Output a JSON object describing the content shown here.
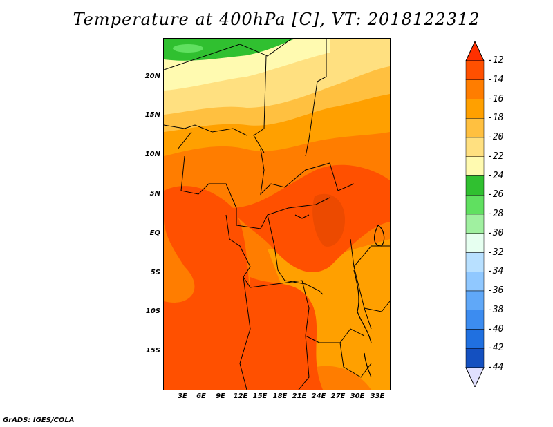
{
  "title": "Temperature at 400hPa [C], VT: 2018122312",
  "credit": "GrADS: IGES/COLA",
  "lat_labels": [
    "20N",
    "15N",
    "10N",
    "5N",
    "EQ",
    "5S",
    "10S",
    "15S"
  ],
  "lon_labels": [
    "3E",
    "6E",
    "9E",
    "12E",
    "15E",
    "18E",
    "21E",
    "24E",
    "27E",
    "30E",
    "33E"
  ],
  "colorbar": {
    "labels": [
      "-12",
      "-14",
      "-16",
      "-18",
      "-20",
      "-22",
      "-24",
      "-26",
      "-28",
      "-30",
      "-32",
      "-34",
      "-36",
      "-38",
      "-40",
      "-42",
      "-44"
    ],
    "colors": [
      "#ff5000",
      "#ff7d00",
      "#ffa000",
      "#ffc040",
      "#ffe080",
      "#fffab0",
      "#30c030",
      "#60e060",
      "#a0f0a0",
      "#e6fff0",
      "#b8e0ff",
      "#90c8ff",
      "#60a8f8",
      "#3c8cf0",
      "#2070e0",
      "#1450c0",
      "#0a1a80"
    ],
    "over_color": "#ff3000",
    "under_color": "#e0e0ff"
  },
  "field_colors": {
    "c12": "#ff5000",
    "c14": "#ff7d00",
    "c16": "#ffa000",
    "c18": "#ffc040",
    "c20": "#ffe080",
    "c22": "#fffab0",
    "c24": "#30c030",
    "c26": "#60e060",
    "c28": "#a0f0a0"
  }
}
